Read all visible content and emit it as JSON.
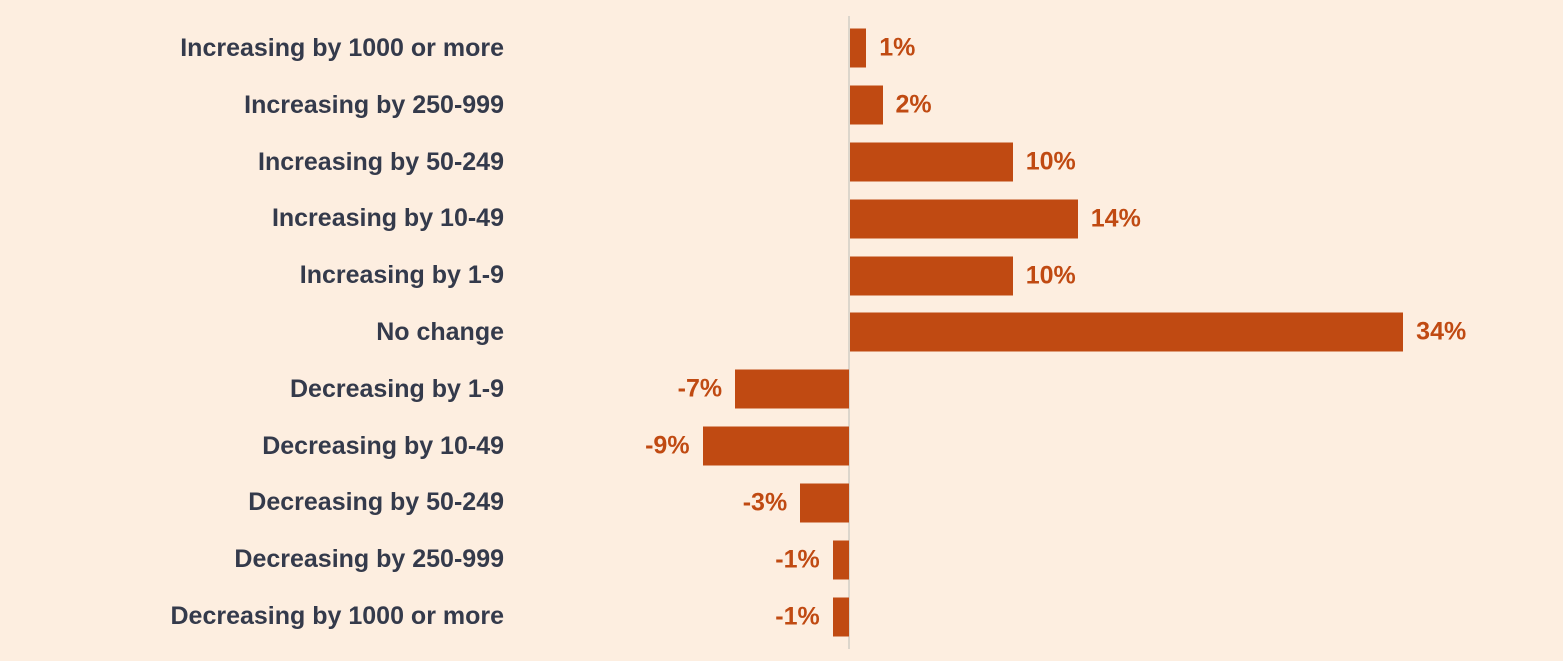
{
  "chart_data": {
    "type": "bar",
    "orientation": "horizontal",
    "title": "",
    "xlabel": "",
    "ylabel": "",
    "categories": [
      "Increasing by 1000 or more",
      "Increasing by 250-999",
      "Increasing by 50-249",
      "Increasing by 10-49",
      "Increasing by 1-9",
      "No change",
      "Decreasing by 1-9",
      "Decreasing by 10-49",
      "Decreasing by 50-249",
      "Decreasing by 250-999",
      "Decreasing by 1000 or more"
    ],
    "values": [
      1,
      2,
      10,
      14,
      10,
      34,
      -7,
      -9,
      -3,
      -1,
      -1
    ],
    "value_labels": [
      "1%",
      "2%",
      "10%",
      "14%",
      "10%",
      "34%",
      "-7%",
      "-9%",
      "-3%",
      "-1%",
      "-1%"
    ],
    "xlim": [
      -12,
      44
    ],
    "grid": false,
    "legend": "none",
    "colors": {
      "bar": "#c04a12",
      "value_label": "#c04a12",
      "category_label": "#343a4b",
      "background": "#fdeee0",
      "zero_line": "#dcd6cc"
    }
  }
}
